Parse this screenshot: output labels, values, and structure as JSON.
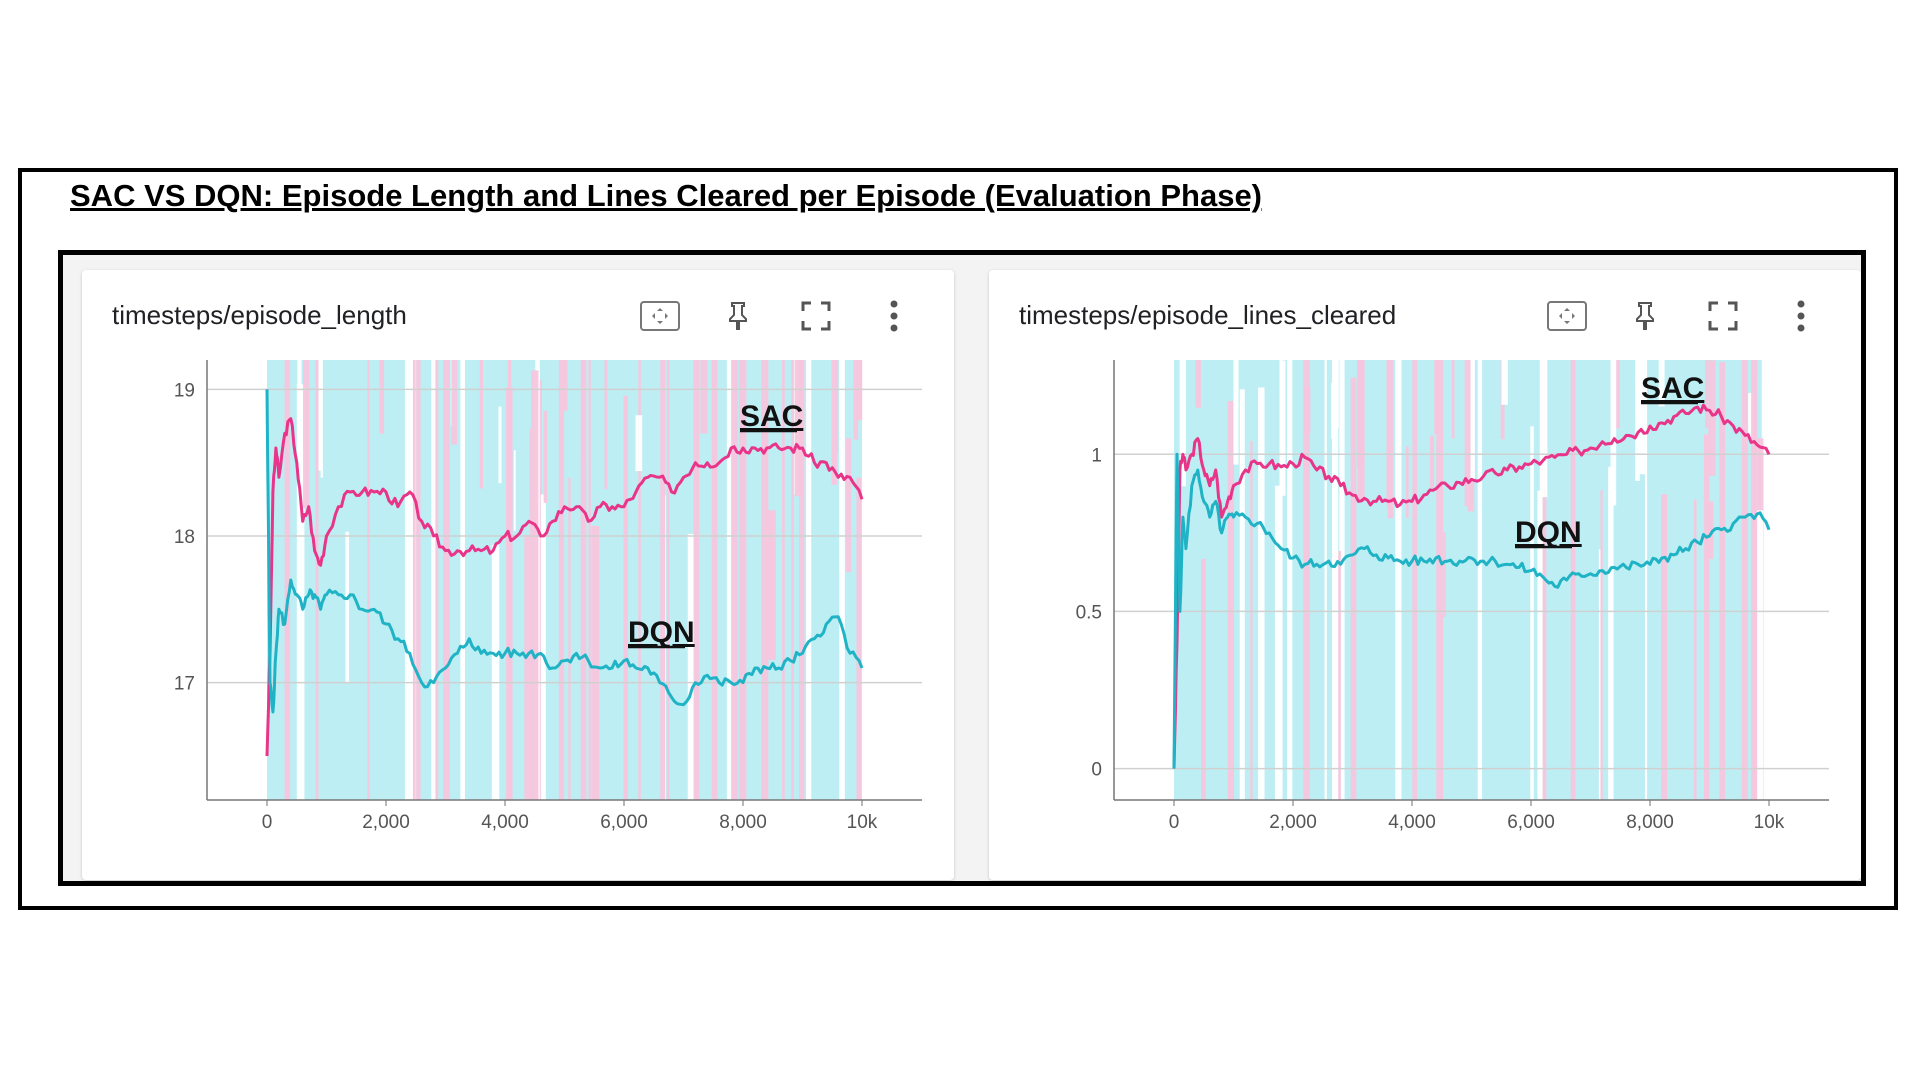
{
  "page_title": "SAC VS DQN: Episode Length and Lines Cleared per Episode (Evaluation Phase)",
  "colors": {
    "sac": "#e8358a",
    "dqn": "#1fb3c5",
    "sac_band": "#f7c6dd",
    "dqn_band": "#bdeef3"
  },
  "toolbar_icons": [
    "fit-domain-icon",
    "pin-icon",
    "fullscreen-icon",
    "more-vert-icon"
  ],
  "chart_data": [
    {
      "type": "line",
      "title": "timesteps/episode_length",
      "xlabel": "",
      "ylabel": "",
      "xlim": [
        0,
        10000
      ],
      "ylim": [
        16.2,
        19.2
      ],
      "x_ticks": [
        0,
        2000,
        4000,
        6000,
        8000,
        10000
      ],
      "x_tick_labels": [
        "0",
        "2,000",
        "4,000",
        "6,000",
        "8,000",
        "10k"
      ],
      "y_ticks": [
        17,
        18,
        19
      ],
      "y_tick_labels": [
        "17",
        "18",
        "19"
      ],
      "grid": true,
      "series": [
        {
          "name": "SAC",
          "x": [
            0,
            50,
            100,
            150,
            200,
            300,
            400,
            500,
            600,
            700,
            800,
            900,
            1000,
            1200,
            1400,
            1600,
            1800,
            2000,
            2200,
            2400,
            2600,
            2800,
            3000,
            3200,
            3400,
            3600,
            3800,
            4000,
            4200,
            4400,
            4600,
            4800,
            5000,
            5200,
            5400,
            5600,
            5800,
            6000,
            6200,
            6400,
            6600,
            6800,
            7000,
            7200,
            7400,
            7600,
            7800,
            8000,
            8200,
            8400,
            8600,
            8800,
            9000,
            9200,
            9400,
            9600,
            9800,
            10000
          ],
          "values": [
            16.5,
            17.2,
            18.3,
            18.6,
            18.4,
            18.7,
            18.8,
            18.5,
            18.1,
            18.2,
            17.9,
            17.8,
            18.0,
            18.2,
            18.3,
            18.3,
            18.3,
            18.3,
            18.2,
            18.3,
            18.1,
            18.0,
            17.9,
            17.9,
            17.9,
            17.9,
            17.9,
            18.0,
            18.0,
            18.1,
            18.0,
            18.1,
            18.2,
            18.2,
            18.1,
            18.2,
            18.2,
            18.2,
            18.3,
            18.4,
            18.4,
            18.3,
            18.4,
            18.5,
            18.5,
            18.5,
            18.6,
            18.6,
            18.6,
            18.6,
            18.6,
            18.6,
            18.6,
            18.5,
            18.5,
            18.4,
            18.4,
            18.25
          ]
        },
        {
          "name": "DQN",
          "x": [
            0,
            50,
            100,
            150,
            200,
            300,
            400,
            500,
            600,
            700,
            800,
            900,
            1000,
            1200,
            1400,
            1600,
            1800,
            2000,
            2200,
            2400,
            2600,
            2800,
            3000,
            3200,
            3400,
            3600,
            3800,
            4000,
            4200,
            4400,
            4600,
            4800,
            5000,
            5200,
            5400,
            5600,
            5800,
            6000,
            6200,
            6400,
            6600,
            6800,
            7000,
            7200,
            7400,
            7600,
            7800,
            8000,
            8200,
            8400,
            8600,
            8800,
            9000,
            9200,
            9400,
            9600,
            9800,
            10000
          ],
          "values": [
            19.0,
            17.0,
            16.8,
            17.2,
            17.5,
            17.4,
            17.7,
            17.6,
            17.5,
            17.6,
            17.6,
            17.5,
            17.6,
            17.6,
            17.6,
            17.5,
            17.5,
            17.4,
            17.3,
            17.2,
            17.0,
            17.0,
            17.1,
            17.2,
            17.3,
            17.2,
            17.2,
            17.2,
            17.2,
            17.2,
            17.2,
            17.1,
            17.15,
            17.2,
            17.15,
            17.1,
            17.1,
            17.15,
            17.1,
            17.1,
            17.0,
            16.9,
            16.85,
            17.0,
            17.05,
            17.0,
            17.0,
            17.0,
            17.1,
            17.1,
            17.1,
            17.15,
            17.2,
            17.3,
            17.4,
            17.45,
            17.2,
            17.1
          ]
        }
      ]
    },
    {
      "type": "line",
      "title": "timesteps/episode_lines_cleared",
      "xlabel": "",
      "ylabel": "",
      "xlim": [
        0,
        10000
      ],
      "ylim": [
        -0.1,
        1.3
      ],
      "x_ticks": [
        0,
        2000,
        4000,
        6000,
        8000,
        10000
      ],
      "x_tick_labels": [
        "0",
        "2,000",
        "4,000",
        "6,000",
        "8,000",
        "10k"
      ],
      "y_ticks": [
        0,
        0.5,
        1
      ],
      "y_tick_labels": [
        "0",
        "0.5",
        "1"
      ],
      "grid": true,
      "series": [
        {
          "name": "SAC",
          "x": [
            0,
            50,
            100,
            150,
            200,
            300,
            400,
            500,
            600,
            700,
            800,
            900,
            1000,
            1200,
            1400,
            1600,
            1800,
            2000,
            2200,
            2400,
            2600,
            2800,
            3000,
            3200,
            3400,
            3600,
            3800,
            4000,
            4200,
            4400,
            4600,
            4800,
            5000,
            5200,
            5400,
            5600,
            5800,
            6000,
            6200,
            6400,
            6600,
            6800,
            7000,
            7200,
            7400,
            7600,
            7800,
            8000,
            8200,
            8400,
            8600,
            8800,
            9000,
            9200,
            9400,
            9600,
            9800,
            10000
          ],
          "values": [
            0.0,
            0.4,
            0.95,
            1.0,
            0.95,
            1.0,
            1.05,
            0.95,
            0.9,
            0.95,
            0.8,
            0.85,
            0.9,
            0.95,
            0.97,
            0.97,
            0.96,
            0.97,
            0.99,
            0.95,
            0.93,
            0.9,
            0.87,
            0.86,
            0.85,
            0.85,
            0.84,
            0.85,
            0.87,
            0.89,
            0.9,
            0.91,
            0.92,
            0.93,
            0.94,
            0.95,
            0.96,
            0.97,
            0.98,
            0.99,
            1.0,
            1.01,
            1.02,
            1.04,
            1.05,
            1.06,
            1.07,
            1.09,
            1.1,
            1.12,
            1.13,
            1.15,
            1.14,
            1.12,
            1.09,
            1.06,
            1.03,
            1.0
          ]
        },
        {
          "name": "DQN",
          "x": [
            0,
            50,
            100,
            150,
            200,
            300,
            400,
            500,
            600,
            700,
            800,
            900,
            1000,
            1200,
            1400,
            1600,
            1800,
            2000,
            2200,
            2400,
            2600,
            2800,
            3000,
            3200,
            3400,
            3600,
            3800,
            4000,
            4200,
            4400,
            4600,
            4800,
            5000,
            5200,
            5400,
            5600,
            5800,
            6000,
            6200,
            6400,
            6600,
            6800,
            7000,
            7200,
            7400,
            7600,
            7800,
            8000,
            8200,
            8400,
            8600,
            8800,
            9000,
            9200,
            9400,
            9600,
            9800,
            10000
          ],
          "values": [
            0.0,
            1.0,
            0.5,
            0.8,
            0.7,
            0.9,
            0.95,
            0.85,
            0.8,
            0.85,
            0.75,
            0.8,
            0.8,
            0.8,
            0.78,
            0.75,
            0.7,
            0.67,
            0.65,
            0.65,
            0.66,
            0.65,
            0.68,
            0.7,
            0.68,
            0.67,
            0.66,
            0.66,
            0.66,
            0.67,
            0.66,
            0.66,
            0.67,
            0.66,
            0.66,
            0.65,
            0.64,
            0.63,
            0.61,
            0.58,
            0.6,
            0.62,
            0.62,
            0.63,
            0.64,
            0.64,
            0.65,
            0.65,
            0.67,
            0.68,
            0.7,
            0.72,
            0.74,
            0.76,
            0.78,
            0.8,
            0.81,
            0.76
          ]
        }
      ]
    }
  ]
}
